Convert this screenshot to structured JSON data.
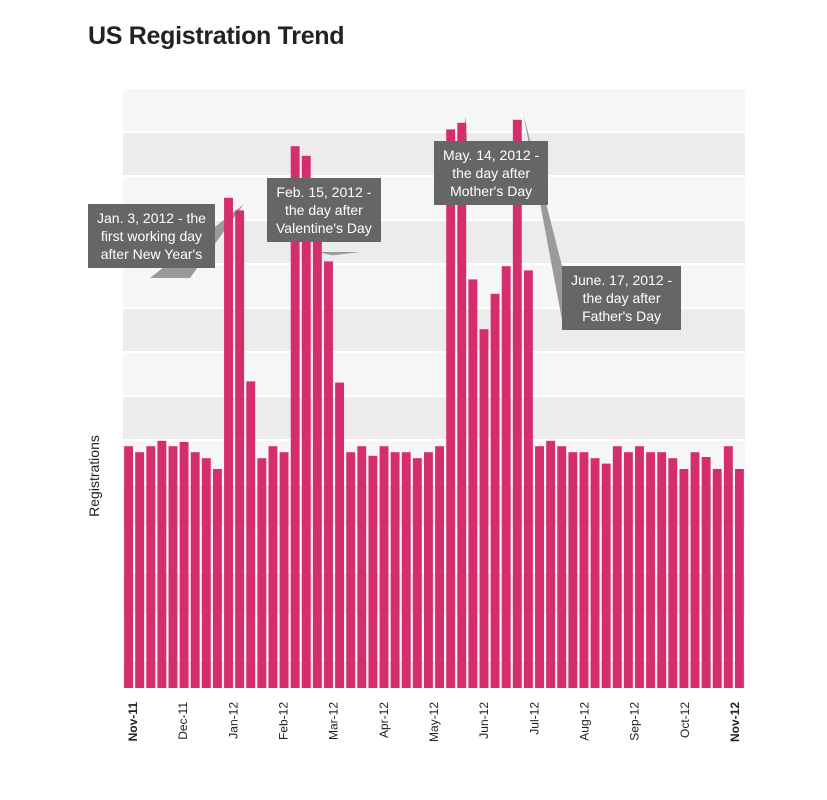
{
  "chart_data": {
    "type": "bar",
    "title": "US Registration Trend",
    "xlabel": "",
    "ylabel": "Registrations",
    "grid": true,
    "ylim": [
      0,
      100
    ],
    "colors": {
      "bar": "#d42e6e",
      "grid_band_a": "#ececec",
      "grid_band_b": "#f6f6f6",
      "annotation_box": "#666666"
    },
    "x_tick_labels": [
      {
        "label": "Nov-11",
        "bold": true
      },
      {
        "label": "Dec-11",
        "bold": false
      },
      {
        "label": "Jan-12",
        "bold": false
      },
      {
        "label": "Feb-12",
        "bold": false
      },
      {
        "label": "Mar-12",
        "bold": false
      },
      {
        "label": "Apr-12",
        "bold": false
      },
      {
        "label": "May-12",
        "bold": false
      },
      {
        "label": "Jun-12",
        "bold": false
      },
      {
        "label": "Jul-12",
        "bold": false
      },
      {
        "label": "Aug-12",
        "bold": false
      },
      {
        "label": "Sep-12",
        "bold": false
      },
      {
        "label": "Oct-12",
        "bold": false
      },
      {
        "label": "Nov-12",
        "bold": true
      }
    ],
    "values": [
      40.3,
      39.3,
      40.3,
      41.2,
      40.3,
      41.0,
      39.3,
      38.3,
      36.5,
      81.7,
      79.6,
      51.1,
      38.3,
      40.3,
      39.3,
      90.3,
      88.7,
      79.6,
      71.1,
      50.9,
      39.3,
      40.3,
      38.7,
      40.3,
      39.3,
      39.3,
      38.3,
      39.3,
      40.3,
      93.1,
      94.2,
      68.1,
      59.8,
      65.7,
      70.3,
      94.7,
      69.6,
      40.3,
      41.2,
      40.3,
      39.3,
      39.3,
      38.3,
      37.4,
      40.3,
      39.3,
      40.3,
      39.3,
      39.3,
      38.3,
      36.5,
      39.3,
      38.5,
      36.5,
      40.3,
      36.5
    ],
    "annotations": [
      {
        "text": "Jan. 3, 2012 - the\nfirst working day\nafter New Year's"
      },
      {
        "text": "Feb. 15, 2012 -\nthe day after\nValentine's Day"
      },
      {
        "text": "May. 14, 2012 -\nthe day after\nMother's Day"
      },
      {
        "text": "June. 17, 2012 -\nthe day after\nFather's Day"
      }
    ]
  }
}
